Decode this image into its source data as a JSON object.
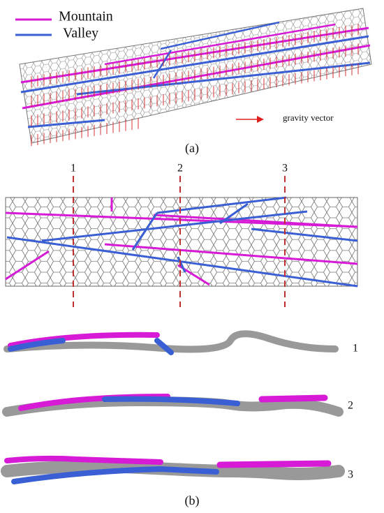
{
  "legend": [
    {
      "label": "Mountain",
      "color": "#d61ad6"
    },
    {
      "label": "Valley",
      "color": "#3a5fd4"
    }
  ],
  "panel_a": {
    "annotation": "gravity vector",
    "label": "(a)"
  },
  "panel_b": {
    "section_labels": [
      "1",
      "2",
      "3"
    ],
    "cross_section_labels": [
      "1",
      "2",
      "3"
    ],
    "label": "(b)"
  }
}
